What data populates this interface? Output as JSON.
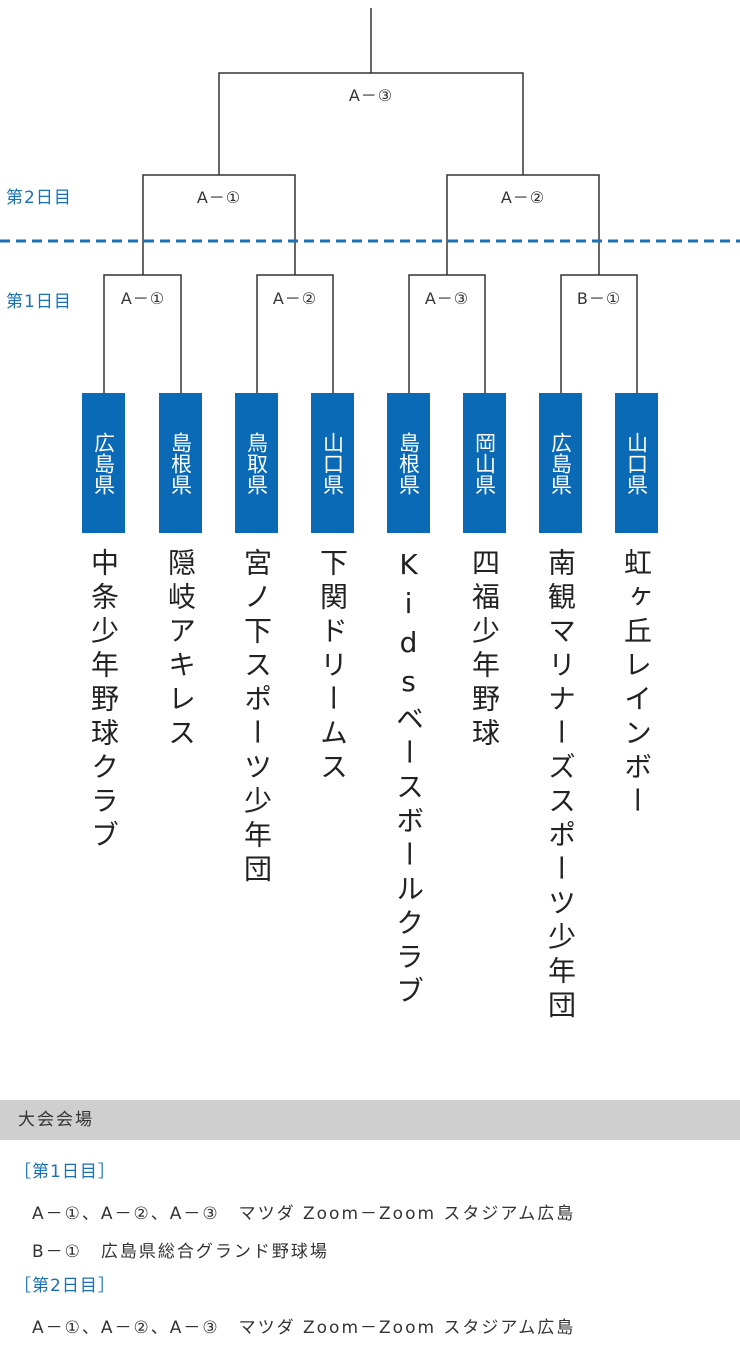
{
  "bracket": {
    "day_labels": {
      "day2": "第2日目",
      "day1": "第1日目"
    },
    "final_label": "A－③",
    "day2_matches": [
      "A－①",
      "A－②"
    ],
    "day1_matches": [
      "A－①",
      "A－②",
      "A－③",
      "B－①"
    ],
    "teams": [
      {
        "pref": "広島県",
        "name": "中条少年野球クラブ"
      },
      {
        "pref": "島根県",
        "name": "隠岐アキレス"
      },
      {
        "pref": "鳥取県",
        "name": "宮ノ下スポーツ少年団"
      },
      {
        "pref": "山口県",
        "name": "下関ドリームス"
      },
      {
        "pref": "島根県",
        "name": "Kidsベースボールクラブ"
      },
      {
        "pref": "岡山県",
        "name": "四福少年野球"
      },
      {
        "pref": "広島県",
        "name": "南観マリナーズスポーツ少年団"
      },
      {
        "pref": "山口県",
        "name": "虹ヶ丘レインボー"
      }
    ],
    "line_color": "#333333",
    "divider_color": "#1a6fb5",
    "box_color": "#0a6ab6"
  },
  "venue": {
    "header": "大会会場",
    "day1_heading": "［第1日目］",
    "day1_line1": "A－①、A－②、A－③　マツダ Zoom－Zoom スタジアム広島",
    "day1_line2": "B－①　広島県総合グランド野球場",
    "day2_heading": "［第2日目］",
    "day2_line1": "A－①、A－②、A－③　マツダ Zoom－Zoom スタジアム広島"
  }
}
